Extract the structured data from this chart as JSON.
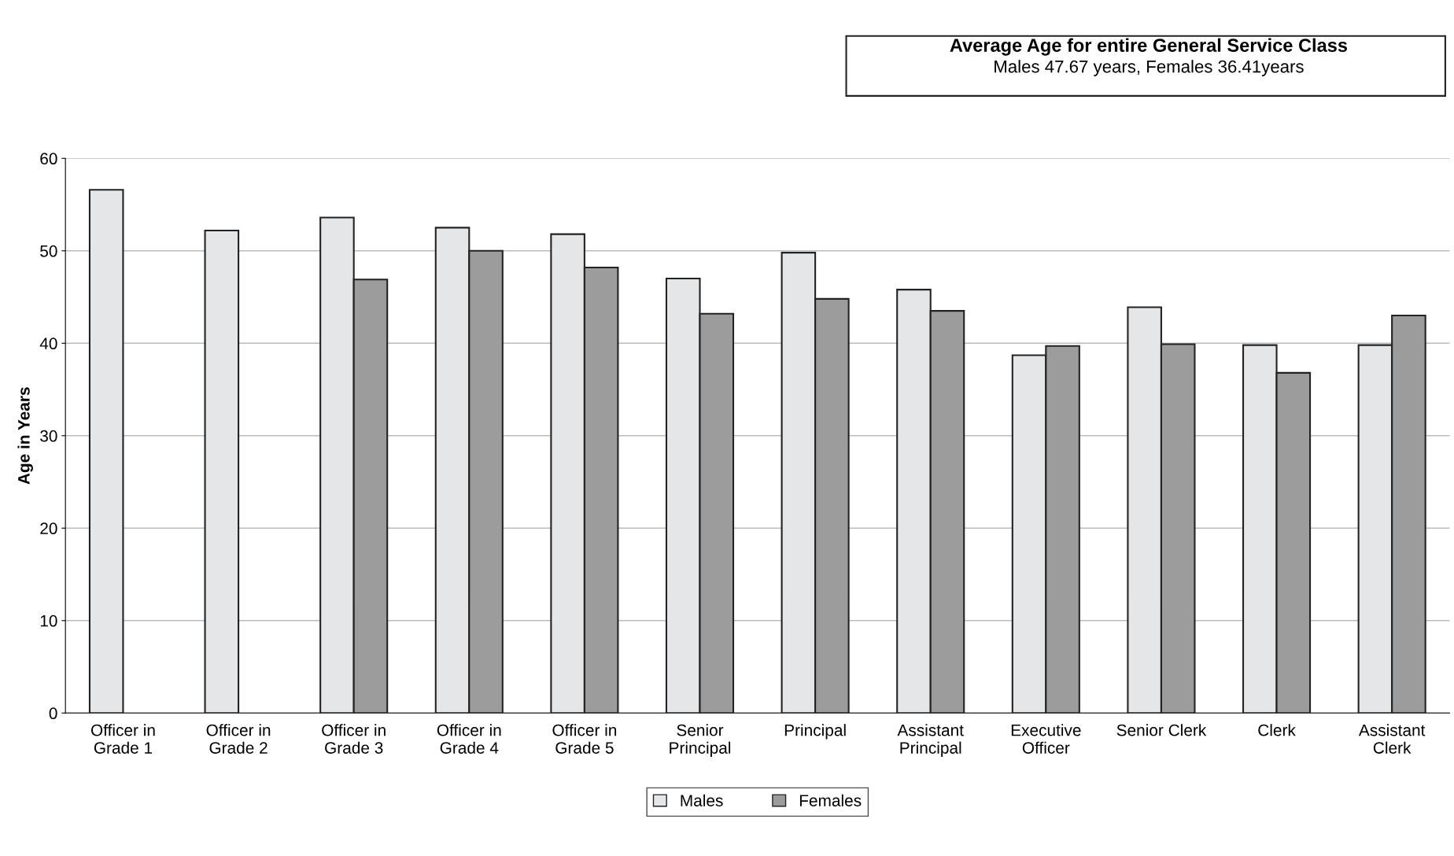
{
  "chart_data": {
    "type": "bar",
    "title": "Average Age for entire General Service Class",
    "subtitle": "Males 47.67 years, Females 36.41years",
    "ylabel": "Age in Years",
    "categories": [
      "Officer in\nGrade 1",
      "Officer in\nGrade 2",
      "Officer in\nGrade 3",
      "Officer in\nGrade 4",
      "Officer in\nGrade 5",
      "Senior\nPrincipal",
      "Principal",
      "Assistant\nPrincipal",
      "Executive\nOfficer",
      "Senior Clerk",
      "Clerk",
      "Assistant\nClerk"
    ],
    "series": [
      {
        "name": "Males",
        "color": "#e4e6e8",
        "values": [
          56.6,
          52.2,
          53.6,
          52.5,
          51.8,
          47.0,
          49.8,
          45.8,
          38.7,
          43.9,
          39.8,
          39.8
        ]
      },
      {
        "name": "Females",
        "color": "#9c9c9c",
        "values": [
          null,
          null,
          46.9,
          50.0,
          48.2,
          43.2,
          44.8,
          43.5,
          39.7,
          39.9,
          36.8,
          43.0
        ]
      }
    ],
    "ylim": [
      0,
      60
    ],
    "yticks": [
      0,
      10,
      20,
      30,
      40,
      50,
      60
    ],
    "grid": "y",
    "legend": "bottom"
  }
}
